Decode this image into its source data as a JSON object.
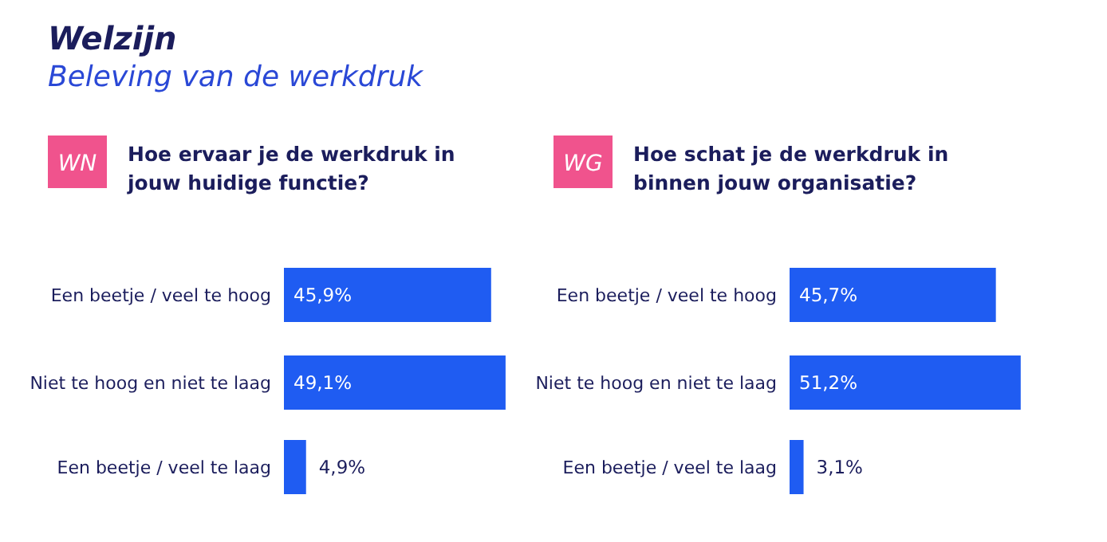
{
  "chart_data": [
    {
      "type": "other",
      "title": "Welzijn",
      "subtitle": "Beleving van de werkdruk"
    },
    {
      "type": "bar",
      "orientation": "horizontal",
      "title": "Hoe ervaar je de werkdruk in jouw huidige functie?",
      "annotations": [
        "WN"
      ],
      "categories": [
        "Een beetje / veel te hoog",
        "Niet te hoog en niet te laag",
        "Een beetje / veel te laag"
      ],
      "values": [
        45.9,
        49.1,
        4.9
      ],
      "value_labels": [
        "45,9%",
        "49,1%",
        "4,9%"
      ],
      "color": "#1f5cf2"
    },
    {
      "type": "bar",
      "orientation": "horizontal",
      "title": "Hoe schat je de werkdruk in binnen jouw organisatie?",
      "annotations": [
        "WG"
      ],
      "categories": [
        "Een beetje / veel te hoog",
        "Niet te hoog en niet te laag",
        "Een beetje / veel te laag"
      ],
      "values": [
        45.7,
        51.2,
        3.1
      ],
      "value_labels": [
        "45,7%",
        "51,2%",
        "3,1%"
      ],
      "color": "#1f5cf2"
    }
  ]
}
